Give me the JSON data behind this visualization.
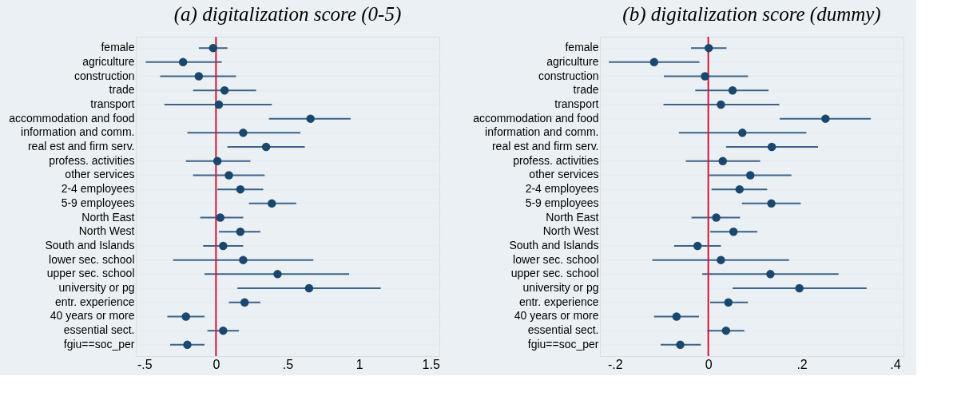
{
  "chart_data": [
    {
      "type": "scatter",
      "title": "(a) digitalization score (0-5)",
      "orientation": "horizontal",
      "marker": "circle",
      "grid": "y",
      "categories": [
        "female",
        "agriculture",
        "construction",
        "trade",
        "transport",
        "accommodation and food",
        "information and comm.",
        "real est and firm serv.",
        "profess. activities",
        "other services",
        "2-4 employees",
        "5-9 employees",
        "North East",
        "North West",
        "South and Islands",
        "lower sec. school",
        "upper sec. school",
        "university or pg",
        "entr. experience",
        "40 years or more",
        "essential sect.",
        "fgiu==soc_per"
      ],
      "series": [
        {
          "color": "#1a476f",
          "values": [
            -0.02,
            -0.23,
            -0.12,
            0.06,
            0.02,
            0.66,
            0.19,
            0.35,
            0.01,
            0.09,
            0.17,
            0.39,
            0.03,
            0.17,
            0.05,
            0.19,
            0.43,
            0.65,
            0.2,
            -0.21,
            0.05,
            -0.2
          ],
          "errors": [
            [
              -0.12,
              0.08
            ],
            [
              -0.49,
              0.04
            ],
            [
              -0.39,
              0.14
            ],
            [
              -0.16,
              0.28
            ],
            [
              -0.36,
              0.39
            ],
            [
              0.37,
              0.94
            ],
            [
              -0.2,
              0.59
            ],
            [
              0.08,
              0.62
            ],
            [
              -0.21,
              0.24
            ],
            [
              -0.16,
              0.34
            ],
            [
              0.01,
              0.33
            ],
            [
              0.23,
              0.56
            ],
            [
              -0.11,
              0.19
            ],
            [
              0.02,
              0.31
            ],
            [
              -0.09,
              0.19
            ],
            [
              -0.3,
              0.68
            ],
            [
              -0.08,
              0.93
            ],
            [
              0.15,
              1.15
            ],
            [
              0.09,
              0.31
            ],
            [
              -0.34,
              -0.08
            ],
            [
              -0.06,
              0.16
            ],
            [
              -0.32,
              -0.08
            ]
          ]
        }
      ],
      "xlim": [
        -0.56,
        1.56
      ],
      "xticks": [
        {
          "value": -0.5,
          "label": "-.5"
        },
        0,
        {
          "value": 0.5,
          "label": ".5"
        },
        1,
        1.5
      ],
      "ref_lines": [
        {
          "axis": "x",
          "value": 0,
          "color": "#d6163a"
        }
      ]
    },
    {
      "type": "scatter",
      "title": "(b) digitalization score (dummy)",
      "orientation": "horizontal",
      "marker": "circle",
      "grid": "y",
      "categories": [
        "female",
        "agriculture",
        "construction",
        "trade",
        "transport",
        "accommodation and food",
        "information and comm.",
        "real est and firm serv.",
        "profess. activities",
        "other services",
        "2-4 employees",
        "5-9 employees",
        "North East",
        "North West",
        "South and Islands",
        "lower sec. school",
        "upper sec. school",
        "university or pg",
        "entr. experience",
        "40 years or more",
        "essential sect.",
        "fgiu==soc_per"
      ],
      "series": [
        {
          "color": "#1a476f",
          "values": [
            0.001,
            -0.116,
            -0.007,
            0.052,
            0.027,
            0.251,
            0.073,
            0.136,
            0.031,
            0.09,
            0.067,
            0.135,
            0.017,
            0.054,
            -0.023,
            0.027,
            0.133,
            0.195,
            0.043,
            -0.068,
            0.038,
            -0.06
          ],
          "errors": [
            [
              -0.037,
              0.039
            ],
            [
              -0.213,
              -0.019
            ],
            [
              -0.095,
              0.085
            ],
            [
              -0.028,
              0.129
            ],
            [
              -0.096,
              0.152
            ],
            [
              0.153,
              0.348
            ],
            [
              -0.063,
              0.21
            ],
            [
              0.038,
              0.235
            ],
            [
              -0.048,
              0.111
            ],
            [
              0.002,
              0.178
            ],
            [
              0.007,
              0.126
            ],
            [
              0.072,
              0.198
            ],
            [
              -0.036,
              0.068
            ],
            [
              0.004,
              0.105
            ],
            [
              -0.073,
              0.027
            ],
            [
              -0.12,
              0.173
            ],
            [
              -0.013,
              0.279
            ],
            [
              0.052,
              0.339
            ],
            [
              0.004,
              0.085
            ],
            [
              -0.116,
              -0.02
            ],
            [
              -0.002,
              0.077
            ],
            [
              -0.102,
              -0.016
            ]
          ]
        }
      ],
      "xlim": [
        -0.232,
        0.418
      ],
      "xticks": [
        {
          "value": -0.2,
          "label": "-.2"
        },
        0,
        {
          "value": 0.2,
          "label": ".2"
        },
        {
          "value": 0.4,
          "label": ".4"
        }
      ],
      "ref_lines": [
        {
          "axis": "x",
          "value": 0,
          "color": "#d6163a"
        }
      ]
    }
  ]
}
